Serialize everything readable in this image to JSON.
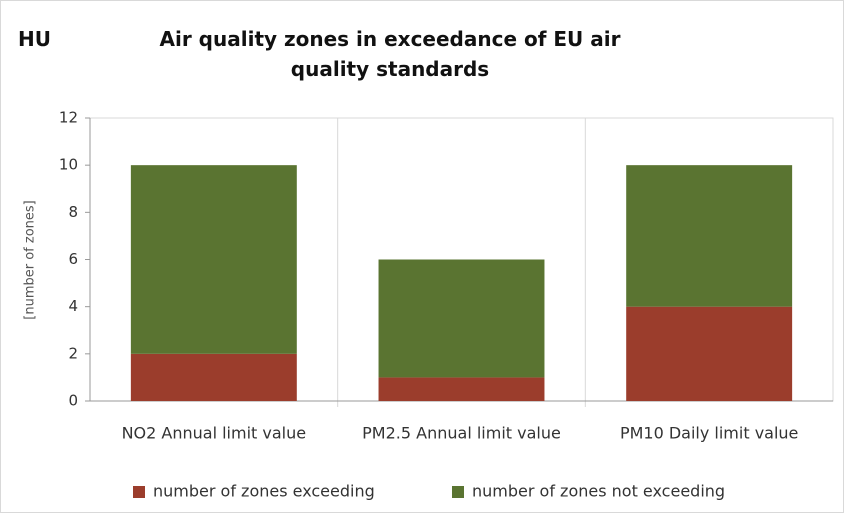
{
  "chart_data": {
    "type": "stacked_bar",
    "country": "HU",
    "title": "Air quality zones in exceedance of EU air quality standards",
    "y_label": "[number of zones]",
    "categories": [
      "NO2 Annual limit value",
      "PM2.5 Annual limit value",
      "PM10 Daily limit value"
    ],
    "series": [
      {
        "name": "number of zones exceeding",
        "color": "#9b3d2c",
        "values": [
          2,
          1,
          4
        ]
      },
      {
        "name": "number of zones not exceeding",
        "color": "#5a7431",
        "values": [
          8,
          5,
          6
        ]
      }
    ],
    "ylim": [
      0,
      12
    ],
    "yticks": [
      0,
      2,
      4,
      6,
      8,
      10,
      12
    ],
    "legend": "bottom"
  }
}
